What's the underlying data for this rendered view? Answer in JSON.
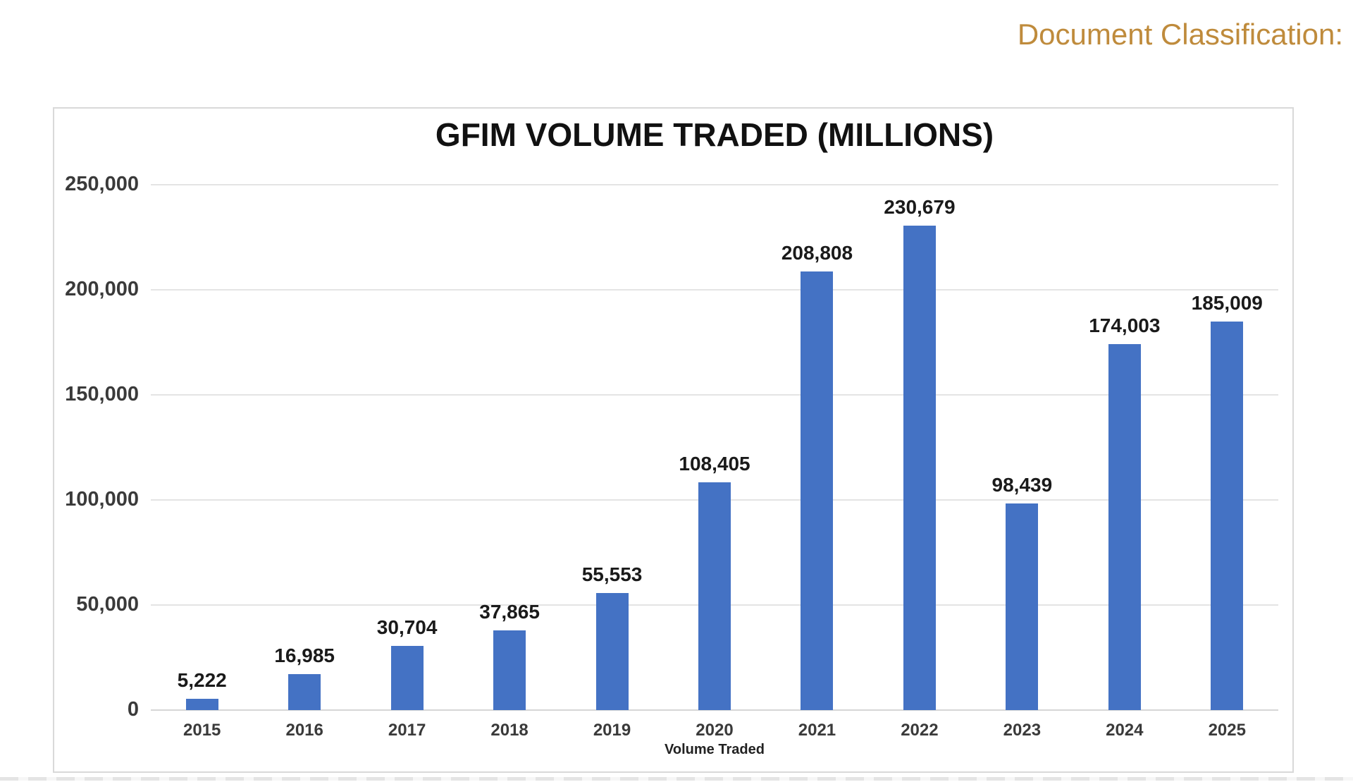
{
  "header": {
    "document_classification": "Document Classification:"
  },
  "colors": {
    "classification_text": "#bf8b3c",
    "bar_fill": "#4472c4",
    "gridline": "#e4e4e4",
    "title_text": "#111111"
  },
  "chart_data": {
    "type": "bar",
    "title": "GFIM VOLUME TRADED (MILLIONS)",
    "xlabel": "Volume Traded",
    "ylabel": "",
    "categories": [
      "2015",
      "2016",
      "2017",
      "2018",
      "2019",
      "2020",
      "2021",
      "2022",
      "2023",
      "2024",
      "2025"
    ],
    "values": [
      5222,
      16985,
      30704,
      37865,
      55553,
      108405,
      208808,
      230679,
      98439,
      174003,
      185009
    ],
    "value_labels": [
      "5,222",
      "16,985",
      "30,704",
      "37,865",
      "55,553",
      "108,405",
      "208,808",
      "230,679",
      "98,439",
      "174,003",
      "185,009"
    ],
    "ylim": [
      0,
      250000
    ],
    "ytick_values": [
      0,
      50000,
      100000,
      150000,
      200000,
      250000
    ],
    "ytick_labels": [
      "0",
      "50,000",
      "100,000",
      "150,000",
      "200,000",
      "250,000"
    ],
    "grid": "horizontal-only",
    "legend": "none",
    "series_name": "Volume Traded"
  }
}
